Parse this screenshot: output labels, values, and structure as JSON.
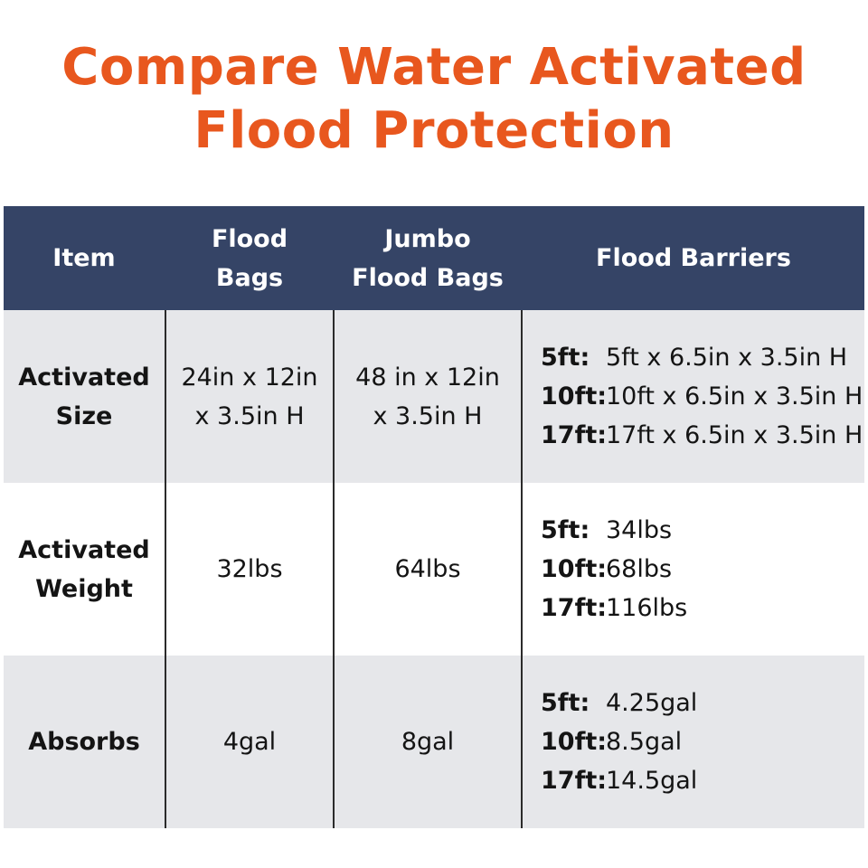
{
  "title": {
    "line1": "Compare Water Activated",
    "line2": "Flood Protection"
  },
  "header": {
    "item": "Item",
    "flood_bags_1": "Flood",
    "flood_bags_2": "Bags",
    "jumbo_1": "Jumbo",
    "jumbo_2": "Flood Bags",
    "barriers": "Flood Barriers"
  },
  "rows": [
    {
      "label_1": "Activated",
      "label_2": "Size",
      "flood_bags_1": "24in x 12in",
      "flood_bags_2": "x 3.5in H",
      "jumbo_1": "48 in x 12in",
      "jumbo_2": "x 3.5in H",
      "barriers": [
        {
          "size": "5ft:",
          "value": "5ft x 6.5in x 3.5in H"
        },
        {
          "size": "10ft:",
          "value": "10ft x 6.5in x 3.5in H"
        },
        {
          "size": "17ft:",
          "value": "17ft x 6.5in x 3.5in H"
        }
      ]
    },
    {
      "label_1": "Activated",
      "label_2": "Weight",
      "flood_bags": "32lbs",
      "jumbo": "64lbs",
      "barriers": [
        {
          "size": "5ft:",
          "value": "34lbs"
        },
        {
          "size": "10ft:",
          "value": "68lbs"
        },
        {
          "size": "17ft:",
          "value": "116lbs"
        }
      ]
    },
    {
      "label": "Absorbs",
      "flood_bags": "4gal",
      "jumbo": "8gal",
      "barriers": [
        {
          "size": "5ft:",
          "value": "4.25gal"
        },
        {
          "size": "10ft:",
          "value": "8.5gal"
        },
        {
          "size": "17ft:",
          "value": "14.5gal"
        }
      ]
    }
  ],
  "colors": {
    "title": "#e8571e",
    "header_bg": "#354466",
    "row_shade": "#e6e7ea"
  }
}
